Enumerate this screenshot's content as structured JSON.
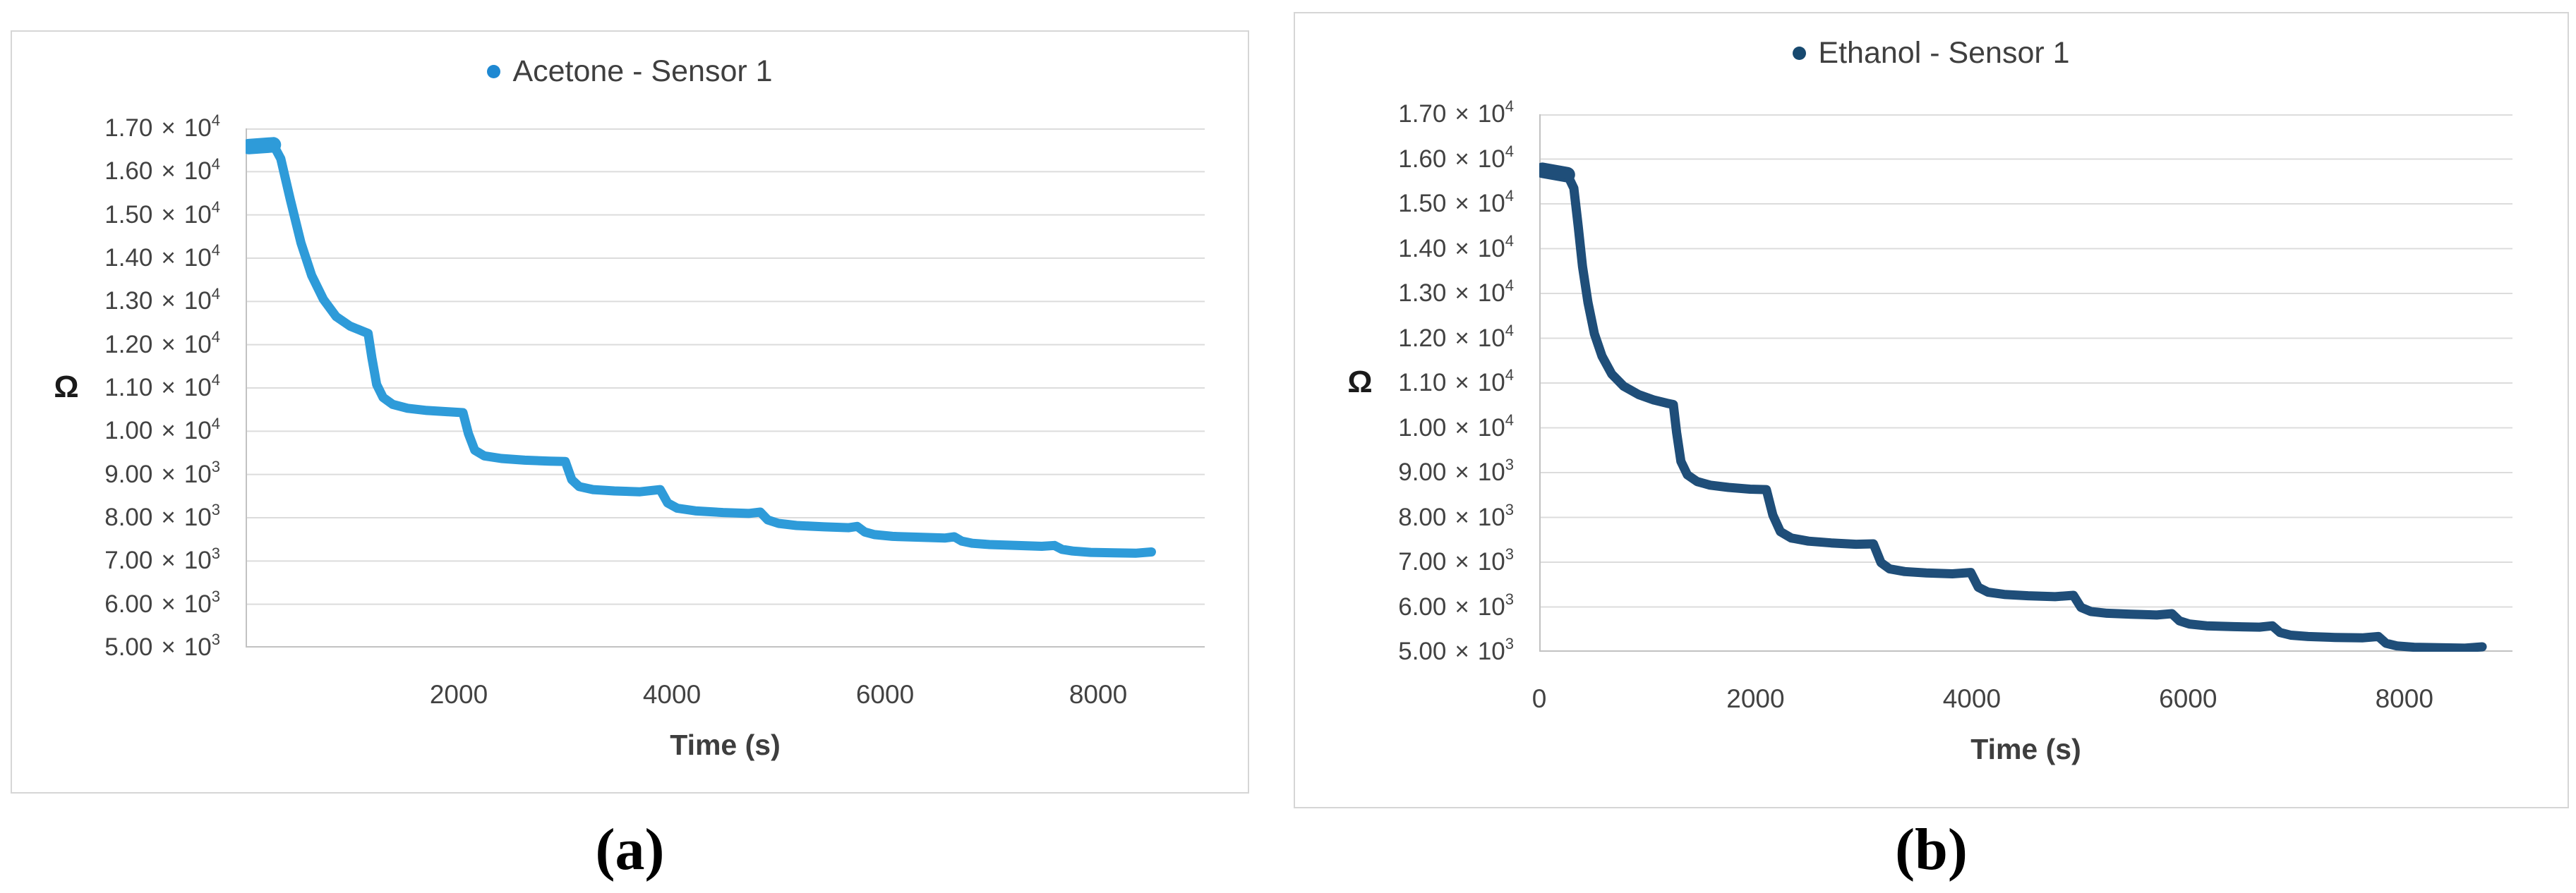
{
  "figure": {
    "background": "#ffffff",
    "colors": {
      "panel_border": "#D6D6D6",
      "gridline": "#DCDCDC",
      "axis_line": "#C2C2C2",
      "tick_text": "#424242",
      "title_text": "#3E3E3E"
    },
    "panels": [
      {
        "caption": "(a)",
        "legend": {
          "label": "Acetone - Sensor 1",
          "marker": "circle-icon",
          "marker_color": "#1E88D2"
        },
        "y_axis": {
          "unit_label": "Ω",
          "tick_labels": [
            "1.70 × 10^4",
            "1.60 × 10^4",
            "1.50 × 10^4",
            "1.40 × 10^4",
            "1.30 × 10^4",
            "1.20 × 10^4",
            "1.10 × 10^4",
            "1.00 × 10^4",
            "9.00 × 10^3",
            "8.00 × 10^3",
            "7.00 × 10^3",
            "6.00 × 10^3",
            "5.00 × 10^3"
          ],
          "tick_values": [
            17000,
            16000,
            15000,
            14000,
            13000,
            12000,
            11000,
            10000,
            9000,
            8000,
            7000,
            6000,
            5000
          ]
        },
        "x_axis": {
          "title": "Time (s)",
          "tick_labels": [
            "2000",
            "4000",
            "6000",
            "8000"
          ],
          "tick_values": [
            2000,
            4000,
            6000,
            8000
          ]
        }
      },
      {
        "caption": "(b)",
        "legend": {
          "label": "Ethanol - Sensor 1",
          "marker": "circle-icon",
          "marker_color": "#17496F"
        },
        "y_axis": {
          "unit_label": "Ω",
          "tick_labels": [
            "1.70 × 10^4",
            "1.60 × 10^4",
            "1.50 × 10^4",
            "1.40 × 10^4",
            "1.30 × 10^4",
            "1.20 × 10^4",
            "1.10 × 10^4",
            "1.00 × 10^4",
            "9.00 × 10^3",
            "8.00 × 10^3",
            "7.00 × 10^3",
            "6.00 × 10^3",
            "5.00 × 10^3"
          ],
          "tick_values": [
            17000,
            16000,
            15000,
            14000,
            13000,
            12000,
            11000,
            10000,
            9000,
            8000,
            7000,
            6000,
            5000
          ]
        },
        "x_axis": {
          "title": "Time (s)",
          "tick_labels": [
            "0",
            "2000",
            "4000",
            "6000",
            "8000"
          ],
          "tick_values": [
            0,
            2000,
            4000,
            6000,
            8000
          ]
        }
      }
    ]
  },
  "chart_data": [
    {
      "type": "line",
      "title": "Acetone - Sensor 1",
      "xlabel": "Time (s)",
      "ylabel": "Ω",
      "xlim": [
        0,
        9000
      ],
      "ylim": [
        5000,
        17000
      ],
      "grid": true,
      "legend_position": "top-center",
      "series": [
        {
          "name": "Acetone - Sensor 1",
          "color": "#2E9BD9",
          "line_width": 13,
          "start_cap_width": 22,
          "points": [
            [
              30,
              16580
            ],
            [
              260,
              16620
            ],
            [
              330,
              16300
            ],
            [
              420,
              15350
            ],
            [
              520,
              14350
            ],
            [
              620,
              13600
            ],
            [
              730,
              13050
            ],
            [
              850,
              12650
            ],
            [
              980,
              12430
            ],
            [
              1100,
              12310
            ],
            [
              1150,
              12260
            ],
            [
              1185,
              11700
            ],
            [
              1230,
              11080
            ],
            [
              1290,
              10780
            ],
            [
              1380,
              10620
            ],
            [
              1520,
              10530
            ],
            [
              1700,
              10480
            ],
            [
              1900,
              10450
            ],
            [
              2040,
              10430
            ],
            [
              2090,
              9950
            ],
            [
              2150,
              9560
            ],
            [
              2240,
              9430
            ],
            [
              2400,
              9370
            ],
            [
              2620,
              9330
            ],
            [
              2850,
              9310
            ],
            [
              3000,
              9300
            ],
            [
              3060,
              8880
            ],
            [
              3130,
              8720
            ],
            [
              3260,
              8650
            ],
            [
              3460,
              8620
            ],
            [
              3700,
              8600
            ],
            [
              3890,
              8650
            ],
            [
              3960,
              8340
            ],
            [
              4050,
              8220
            ],
            [
              4220,
              8160
            ],
            [
              4480,
              8120
            ],
            [
              4720,
              8100
            ],
            [
              4830,
              8130
            ],
            [
              4900,
              7950
            ],
            [
              5000,
              7870
            ],
            [
              5170,
              7820
            ],
            [
              5430,
              7790
            ],
            [
              5660,
              7770
            ],
            [
              5740,
              7800
            ],
            [
              5810,
              7670
            ],
            [
              5900,
              7610
            ],
            [
              6070,
              7570
            ],
            [
              6320,
              7550
            ],
            [
              6560,
              7530
            ],
            [
              6650,
              7560
            ],
            [
              6720,
              7460
            ],
            [
              6820,
              7410
            ],
            [
              6980,
              7380
            ],
            [
              7230,
              7360
            ],
            [
              7470,
              7340
            ],
            [
              7590,
              7360
            ],
            [
              7660,
              7270
            ],
            [
              7760,
              7230
            ],
            [
              7930,
              7200
            ],
            [
              8150,
              7190
            ],
            [
              8350,
              7180
            ],
            [
              8500,
              7210
            ]
          ]
        }
      ]
    },
    {
      "type": "line",
      "title": "Ethanol - Sensor 1",
      "xlabel": "Time (s)",
      "ylabel": "Ω",
      "xlim": [
        0,
        9000
      ],
      "ylim": [
        5000,
        17000
      ],
      "grid": true,
      "legend_position": "top-center",
      "series": [
        {
          "name": "Ethanol - Sensor 1",
          "color": "#1F4E79",
          "line_width": 13,
          "start_cap_width": 22,
          "points": [
            [
              30,
              15750
            ],
            [
              260,
              15650
            ],
            [
              320,
              15350
            ],
            [
              360,
              14500
            ],
            [
              400,
              13600
            ],
            [
              450,
              12800
            ],
            [
              510,
              12100
            ],
            [
              580,
              11600
            ],
            [
              670,
              11200
            ],
            [
              780,
              10930
            ],
            [
              920,
              10740
            ],
            [
              1060,
              10620
            ],
            [
              1180,
              10550
            ],
            [
              1240,
              10520
            ],
            [
              1270,
              9900
            ],
            [
              1310,
              9250
            ],
            [
              1370,
              8950
            ],
            [
              1460,
              8800
            ],
            [
              1580,
              8720
            ],
            [
              1750,
              8670
            ],
            [
              1950,
              8630
            ],
            [
              2100,
              8620
            ],
            [
              2160,
              8050
            ],
            [
              2230,
              7680
            ],
            [
              2330,
              7540
            ],
            [
              2490,
              7470
            ],
            [
              2700,
              7430
            ],
            [
              2930,
              7400
            ],
            [
              3090,
              7410
            ],
            [
              3160,
              6990
            ],
            [
              3240,
              6850
            ],
            [
              3380,
              6790
            ],
            [
              3580,
              6760
            ],
            [
              3820,
              6740
            ],
            [
              3990,
              6770
            ],
            [
              4060,
              6440
            ],
            [
              4150,
              6330
            ],
            [
              4300,
              6280
            ],
            [
              4520,
              6250
            ],
            [
              4770,
              6230
            ],
            [
              4940,
              6260
            ],
            [
              5010,
              5990
            ],
            [
              5100,
              5900
            ],
            [
              5250,
              5860
            ],
            [
              5470,
              5840
            ],
            [
              5710,
              5820
            ],
            [
              5850,
              5850
            ],
            [
              5920,
              5690
            ],
            [
              6010,
              5620
            ],
            [
              6170,
              5580
            ],
            [
              6420,
              5560
            ],
            [
              6660,
              5550
            ],
            [
              6780,
              5580
            ],
            [
              6850,
              5430
            ],
            [
              6950,
              5370
            ],
            [
              7110,
              5340
            ],
            [
              7360,
              5320
            ],
            [
              7610,
              5310
            ],
            [
              7760,
              5340
            ],
            [
              7830,
              5190
            ],
            [
              7930,
              5130
            ],
            [
              8090,
              5100
            ],
            [
              8320,
              5090
            ],
            [
              8560,
              5080
            ],
            [
              8720,
              5110
            ]
          ]
        }
      ]
    }
  ]
}
